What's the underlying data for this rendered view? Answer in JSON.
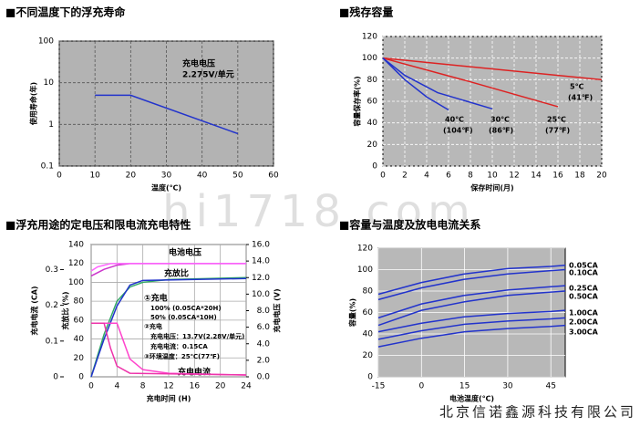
{
  "chart_data": [
    {
      "type": "line",
      "title": "■不同温度下的浮充寿命",
      "x_label": "温度(℃)",
      "y_label": "使用寿命(年)",
      "log": true,
      "grid": true,
      "xlim": [
        0,
        60
      ],
      "xticks": [
        0,
        10,
        20,
        30,
        40,
        50,
        60
      ],
      "ylim": [
        0.1,
        100
      ],
      "yticks": [
        0.1,
        1,
        10,
        100
      ],
      "annotations": [
        "充电电压",
        "2.275V/单元"
      ],
      "series": [
        {
          "color": "#2233cc",
          "x": [
            10,
            20,
            50
          ],
          "values": [
            5,
            5,
            0.6
          ]
        }
      ]
    },
    {
      "type": "line",
      "title": "■残存容量",
      "x_label": "保存时间(月)",
      "y_label": "容量保存率(%)",
      "grid": true,
      "xlim": [
        0,
        20
      ],
      "xticks": [
        0,
        2,
        4,
        6,
        8,
        10,
        12,
        14,
        16,
        18,
        20
      ],
      "ylim": [
        0,
        120
      ],
      "yticks": [
        0,
        20,
        40,
        60,
        80,
        100,
        120
      ],
      "series": [
        {
          "name": "5℃",
          "note": "(41℉)",
          "color": "#dd2222",
          "x": [
            0,
            20
          ],
          "values": [
            100,
            80
          ]
        },
        {
          "name": "25℃",
          "note": "(77℉)",
          "color": "#dd2222",
          "x": [
            0,
            8,
            16
          ],
          "values": [
            100,
            78,
            55
          ]
        },
        {
          "name": "30℃",
          "note": "(86℉)",
          "color": "#2233cc",
          "x": [
            0,
            2,
            5,
            10
          ],
          "values": [
            100,
            84,
            68,
            53
          ]
        },
        {
          "name": "40℃",
          "note": "(104℉)",
          "color": "#2233cc",
          "x": [
            0,
            2,
            4,
            6
          ],
          "values": [
            100,
            80,
            64,
            52
          ]
        }
      ]
    },
    {
      "type": "line",
      "title": "■浮充用途的定电压和限电流充电特性",
      "x_label": "充电时间 (H)",
      "y_label": "充放比 (%)",
      "y2_label": "充电电压 (V)",
      "y3_label": "充电电流 (CA)",
      "grid": true,
      "xlim": [
        0,
        24
      ],
      "xticks": [
        0,
        4,
        8,
        12,
        16,
        20,
        24
      ],
      "ylim": [
        0,
        140
      ],
      "yticks": [
        0,
        20,
        40,
        60,
        80,
        100,
        120,
        140
      ],
      "y2lim": [
        0,
        16
      ],
      "y2ticks": [
        {
          "value": 0,
          "label": "0.0"
        },
        {
          "value": 2,
          "label": "2.0"
        },
        {
          "value": 4,
          "label": "4.0"
        },
        {
          "value": 6,
          "label": "6.0"
        },
        {
          "value": 8,
          "label": "8.0"
        },
        {
          "value": 10,
          "label": "10.0"
        },
        {
          "value": 12,
          "label": "12.0"
        },
        {
          "value": 14,
          "label": "14.0"
        },
        {
          "value": 16,
          "label": "16.0"
        }
      ],
      "y3lim": [
        0,
        0.37
      ],
      "y3ticks": [
        0,
        0.1,
        0.2,
        0.3
      ],
      "annotations": [
        "电池电压",
        "充放比",
        "①充电",
        "100% (0.05CA*20H)",
        "50% (0.05CA*10H)",
        "②充电",
        "充电电压：13.7V(2.28V/单元)",
        "充电电流：0.15CA",
        "③环境温度：25℃(77℉)",
        "充电电流"
      ],
      "series": [
        {
          "color": "#cc33cc",
          "axis": "y2",
          "x": [
            0,
            2,
            4,
            6,
            24
          ],
          "values": [
            12.2,
            13.0,
            13.5,
            13.7,
            13.7
          ]
        },
        {
          "color": "#ff66ff",
          "axis": "y2",
          "x": [
            0,
            1,
            3,
            5,
            24
          ],
          "values": [
            12.8,
            13.3,
            13.7,
            13.7,
            13.7
          ]
        },
        {
          "color": "#33aa66",
          "x": [
            0,
            2,
            4,
            6,
            8,
            12,
            24
          ],
          "values": [
            0,
            45,
            80,
            95,
            100,
            103,
            105
          ]
        },
        {
          "color": "#2233cc",
          "x": [
            0,
            2,
            4,
            6,
            8,
            24
          ],
          "values": [
            0,
            40,
            75,
            97,
            102,
            104
          ]
        },
        {
          "color": "#ff44cc",
          "axis": "y3",
          "x": [
            0,
            4,
            5,
            6,
            8,
            12,
            24
          ],
          "values": [
            0.15,
            0.15,
            0.1,
            0.05,
            0.02,
            0.01,
            0.005
          ]
        },
        {
          "color": "#ee33aa",
          "axis": "y3",
          "x": [
            0,
            2,
            3,
            4,
            6,
            24
          ],
          "values": [
            0.15,
            0.15,
            0.08,
            0.03,
            0.01,
            0.005
          ]
        }
      ]
    },
    {
      "type": "line",
      "title": "■容量与温度及放电电流关系",
      "x_label": "电池温度(℃)",
      "y_label": "容量(%)",
      "grid": true,
      "xlim": [
        -15,
        50
      ],
      "xticks": [
        -15,
        0,
        15,
        30,
        45
      ],
      "ylim": [
        0,
        120
      ],
      "yticks": [
        0,
        20,
        40,
        60,
        80,
        100,
        120
      ],
      "series": [
        {
          "name": "0.05CA",
          "color": "#2233cc",
          "x": [
            -15,
            0,
            15,
            30,
            45,
            50
          ],
          "values": [
            77,
            88,
            96,
            101,
            103,
            104
          ]
        },
        {
          "name": "0.10CA",
          "color": "#2233cc",
          "x": [
            -15,
            0,
            15,
            30,
            45,
            50
          ],
          "values": [
            72,
            83,
            91,
            96,
            99,
            100
          ]
        },
        {
          "name": "0.25CA",
          "color": "#2233cc",
          "x": [
            -15,
            0,
            15,
            30,
            45,
            50
          ],
          "values": [
            55,
            68,
            76,
            81,
            84,
            85
          ]
        },
        {
          "name": "0.50CA",
          "color": "#2233cc",
          "x": [
            -15,
            0,
            15,
            30,
            45,
            50
          ],
          "values": [
            48,
            62,
            70,
            76,
            79,
            80
          ]
        },
        {
          "name": "1.00CA",
          "color": "#2233cc",
          "x": [
            -15,
            0,
            15,
            30,
            45,
            50
          ],
          "values": [
            42,
            50,
            56,
            59,
            61,
            62
          ]
        },
        {
          "name": "2.00CA",
          "color": "#2233cc",
          "x": [
            -15,
            0,
            15,
            30,
            45,
            50
          ],
          "values": [
            35,
            43,
            49,
            52,
            54,
            55
          ]
        },
        {
          "name": "3.00CA",
          "color": "#2233cc",
          "x": [
            -15,
            0,
            15,
            30,
            45,
            50
          ],
          "values": [
            28,
            36,
            42,
            45,
            47,
            48
          ]
        }
      ]
    }
  ],
  "watermark": "hi1718.com",
  "footer": "北京信诺鑫源科技有限公司"
}
